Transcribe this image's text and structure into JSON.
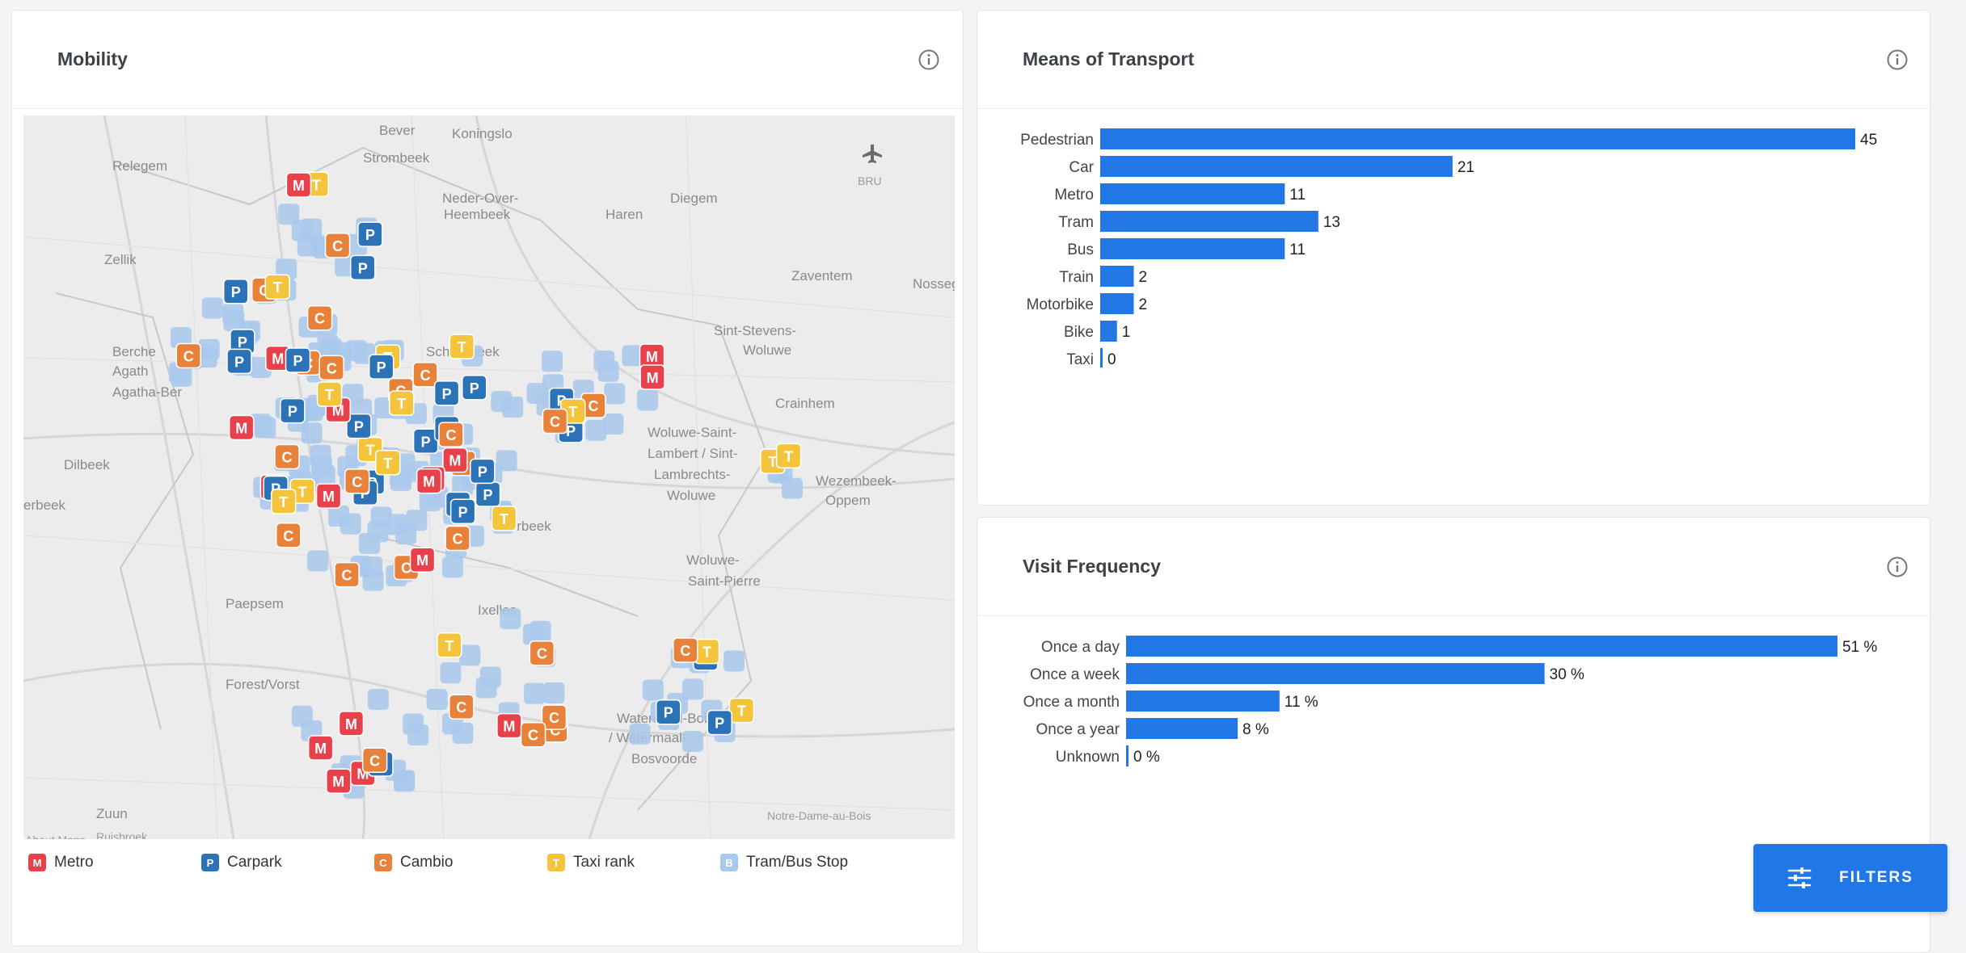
{
  "mobility": {
    "title": "Mobility",
    "map_labels": [
      {
        "text": "Bever"
      },
      {
        "text": "Koningslo"
      },
      {
        "text": "Relegem"
      },
      {
        "text": "Strombeek"
      },
      {
        "text": "Neder-Over-"
      },
      {
        "text": "Heembeek"
      },
      {
        "text": "Haren"
      },
      {
        "text": "Diegem"
      },
      {
        "text": "Zellik"
      },
      {
        "text": "Zaventem"
      },
      {
        "text": "Nossege"
      },
      {
        "text": "Berche"
      },
      {
        "text": "Agath"
      },
      {
        "text": "Agatha-Ber"
      },
      {
        "text": "Schaerbeek"
      },
      {
        "text": "Sint-Stevens-"
      },
      {
        "text": "Woluwe"
      },
      {
        "text": "Crainhem"
      },
      {
        "text": "Dilbeek"
      },
      {
        "text": "Woluwe-Saint-"
      },
      {
        "text": "Lambert / Sint-"
      },
      {
        "text": "Lambrechts-"
      },
      {
        "text": "Woluwe"
      },
      {
        "text": "Wezembeek-"
      },
      {
        "text": "Oppem"
      },
      {
        "text": "erbeek"
      },
      {
        "text": "Etterbeek"
      },
      {
        "text": "Woluwe-"
      },
      {
        "text": "Saint-Pierre"
      },
      {
        "text": "Paepsem"
      },
      {
        "text": "Ixelles"
      },
      {
        "text": "Forest/Vorst"
      },
      {
        "text": "Watermael-Boitsfort"
      },
      {
        "text": "/ Watermaal-"
      },
      {
        "text": "Bosvoorde"
      },
      {
        "text": "Zuun"
      },
      {
        "text": "Ruisbroek"
      },
      {
        "text": "Notre-Dame-au-Bois"
      },
      {
        "text": "About Maps"
      },
      {
        "text": "BRU"
      }
    ],
    "legend": [
      {
        "label": "Metro",
        "color": "#e8414b",
        "glyph": "M"
      },
      {
        "label": "Carpark",
        "color": "#2c72b7",
        "glyph": "P"
      },
      {
        "label": "Cambio",
        "color": "#e8823a",
        "glyph": "C"
      },
      {
        "label": "Taxi rank",
        "color": "#f4c53c",
        "glyph": "T"
      },
      {
        "label": "Tram/Bus Stop",
        "color": "#a8c8ec",
        "glyph": "B"
      }
    ]
  },
  "transport": {
    "title": "Means of Transport",
    "chart_data": {
      "type": "bar",
      "orientation": "horizontal",
      "categories": [
        "Pedestrian",
        "Car",
        "Metro",
        "Tram",
        "Bus",
        "Train",
        "Motorbike",
        "Bike",
        "Taxi"
      ],
      "values": [
        45,
        21,
        11,
        13,
        11,
        2,
        2,
        1,
        0
      ],
      "xlim": [
        0,
        45
      ],
      "bar_color": "#2177e6"
    }
  },
  "frequency": {
    "title": "Visit Frequency",
    "chart_data": {
      "type": "bar",
      "orientation": "horizontal",
      "categories": [
        "Once a day",
        "Once a week",
        "Once a month",
        "Once a year",
        "Unknown"
      ],
      "values": [
        51,
        30,
        11,
        8,
        0
      ],
      "value_suffix": " %",
      "xlim": [
        0,
        51
      ],
      "bar_color": "#2177e6"
    }
  },
  "filters": {
    "label": "FILTERS"
  },
  "icons": {
    "info": "info-icon",
    "filters": "sliders-icon",
    "airport": "airplane-icon"
  }
}
